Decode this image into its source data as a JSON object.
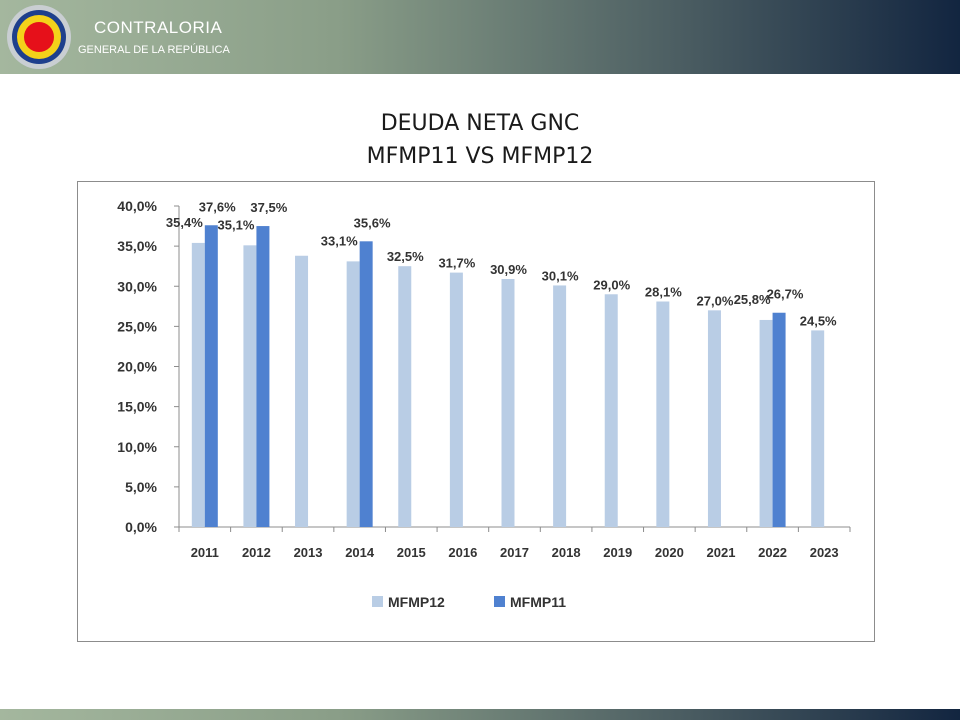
{
  "header": {
    "brand_title": "CONTRALORIA",
    "brand_subtitle": "GENERAL DE LA REPÚBLICA"
  },
  "title": {
    "line1": "DEUDA NETA GNC",
    "line2": "MFMP11 VS MFMP12"
  },
  "colors": {
    "mfmp12": "#b9cde5",
    "mfmp11": "#4f81d0",
    "header_start": "#a4b79e",
    "header_end": "#122540"
  },
  "chart_data": {
    "type": "bar",
    "categories": [
      "2011",
      "2012",
      "2013",
      "2014",
      "2015",
      "2016",
      "2017",
      "2018",
      "2019",
      "2020",
      "2021",
      "2022",
      "2023"
    ],
    "series": [
      {
        "name": "MFMP12",
        "values": [
          35.4,
          35.1,
          33.8,
          33.1,
          32.5,
          31.7,
          30.9,
          30.1,
          29.0,
          28.1,
          27.0,
          25.8,
          24.5
        ],
        "labels": [
          "35,4%",
          "35,1%",
          "",
          "33,1%",
          "32,5%",
          "31,7%",
          "30,9%",
          "30,1%",
          "29,0%",
          "28,1%",
          "27,0%",
          "25,8%",
          "24,5%"
        ]
      },
      {
        "name": "MFMP11",
        "values": [
          37.6,
          37.5,
          null,
          35.6,
          null,
          null,
          null,
          null,
          null,
          null,
          null,
          26.7,
          null
        ],
        "labels": [
          "37,6%",
          "37,5%",
          "",
          "35,6%",
          "",
          "",
          "",
          "",
          "",
          "",
          "",
          "26,7%",
          ""
        ]
      }
    ],
    "yticks": [
      "0,0%",
      "5,0%",
      "10,0%",
      "15,0%",
      "20,0%",
      "25,0%",
      "30,0%",
      "35,0%",
      "40,0%"
    ],
    "ylim": [
      0,
      40
    ],
    "grid": false,
    "legend": "bottom"
  }
}
